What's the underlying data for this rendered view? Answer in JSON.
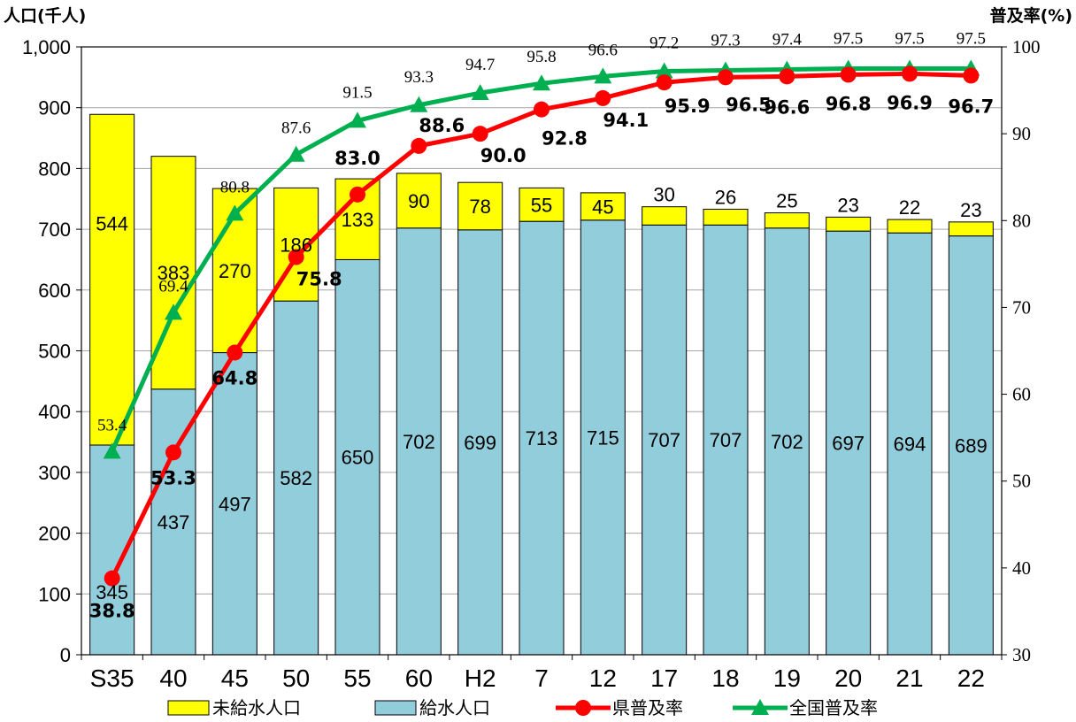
{
  "chart_data": {
    "type": "bar",
    "stacked": true,
    "left_axis_title": "人口(千人)",
    "right_axis_title": "普及率(%)",
    "left_ylim": [
      0,
      1000
    ],
    "left_ticks": [
      "0",
      "100",
      "200",
      "300",
      "400",
      "500",
      "600",
      "700",
      "800",
      "900",
      "1,000"
    ],
    "right_ylim": [
      30,
      100
    ],
    "right_ticks": [
      "30",
      "40",
      "50",
      "60",
      "70",
      "80",
      "90",
      "100"
    ],
    "grid": "horizontal",
    "legend_position": "bottom",
    "categories": [
      "S35",
      "40",
      "45",
      "50",
      "55",
      "60",
      "H2",
      "7",
      "12",
      "17",
      "18",
      "19",
      "20",
      "21",
      "22"
    ],
    "series": [
      {
        "name": "給水人口",
        "type": "bar",
        "axis": "left",
        "color": "#92CDDC",
        "values": [
          345,
          437,
          497,
          582,
          650,
          702,
          699,
          713,
          715,
          707,
          707,
          702,
          697,
          694,
          689
        ]
      },
      {
        "name": "未給水人口",
        "type": "bar",
        "axis": "left",
        "color": "#FFFF00",
        "values": [
          544,
          383,
          270,
          186,
          133,
          90,
          78,
          55,
          45,
          30,
          26,
          25,
          23,
          22,
          23
        ]
      },
      {
        "name": "県普及率",
        "type": "line",
        "axis": "right",
        "color": "#FF0000",
        "marker": "circle",
        "values": [
          38.8,
          53.3,
          64.8,
          75.8,
          83.0,
          88.6,
          90.0,
          92.8,
          94.1,
          95.9,
          96.5,
          96.6,
          96.8,
          96.9,
          96.7
        ],
        "labels": [
          "38.8",
          "53.3",
          "64.8",
          "75.8",
          "83.0",
          "88.6",
          "90.0",
          "92.8",
          "94.1",
          "95.9",
          "96.5",
          "96.6",
          "96.8",
          "96.9",
          "96.7"
        ]
      },
      {
        "name": "全国普及率",
        "type": "line",
        "axis": "right",
        "color": "#00B050",
        "marker": "triangle",
        "values": [
          53.4,
          69.4,
          80.8,
          87.6,
          91.5,
          93.3,
          94.7,
          95.8,
          96.6,
          97.2,
          97.3,
          97.4,
          97.5,
          97.5,
          97.5
        ],
        "labels": [
          "53.4",
          "69.4",
          "80.8",
          "87.6",
          "91.5",
          "93.3",
          "94.7",
          "95.8",
          "96.6",
          "97.2",
          "97.3",
          "97.4",
          "97.5",
          "97.5",
          "97.5"
        ]
      }
    ],
    "legend": [
      "未給水人口",
      "給水人口",
      "県普及率",
      "全国普及率"
    ]
  }
}
